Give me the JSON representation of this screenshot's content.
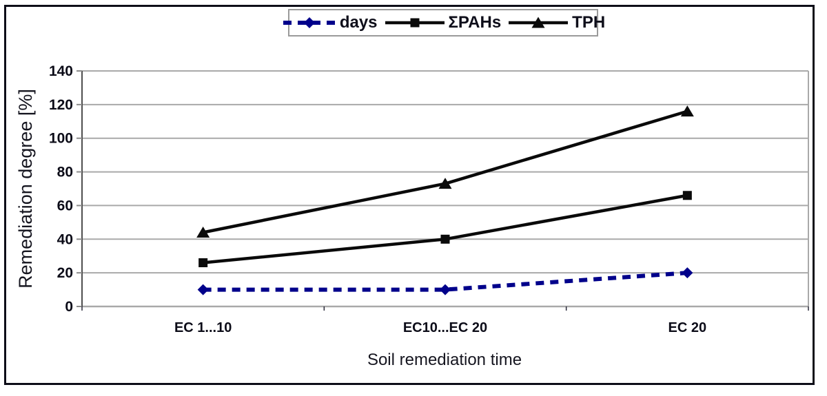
{
  "figure": {
    "background": "#ffffff",
    "border_color": "#0d0d18"
  },
  "legend": {
    "position": "top-center",
    "items": [
      {
        "label": "days"
      },
      {
        "label": "ΣPAHs"
      },
      {
        "label": "TPH"
      }
    ]
  },
  "chart_data": {
    "type": "line",
    "title": "",
    "xlabel": "Soil remediation time",
    "ylabel": "Remediation degree [%]",
    "categories": [
      "EC 1...10",
      "EC10...EC 20",
      "EC 20"
    ],
    "series": [
      {
        "name": "days",
        "values": [
          10,
          10,
          20
        ],
        "color": "#00008B",
        "line_style": "dashed",
        "marker": "diamond"
      },
      {
        "name": "ΣPAHs",
        "values": [
          26,
          40,
          66
        ],
        "color": "#0a0a0a",
        "line_style": "solid",
        "marker": "square"
      },
      {
        "name": "TPH",
        "values": [
          44,
          73,
          116
        ],
        "color": "#0a0a0a",
        "line_style": "solid",
        "marker": "triangle"
      }
    ],
    "ylim": [
      0,
      140
    ],
    "yticks": [
      0,
      20,
      40,
      60,
      80,
      100,
      120,
      140
    ],
    "grid": true,
    "gridline_color": "#a9a9a9",
    "axis_line_color": "#3a3a3a",
    "tick_color": "#8c8c8c",
    "legend_position": "top-center"
  }
}
